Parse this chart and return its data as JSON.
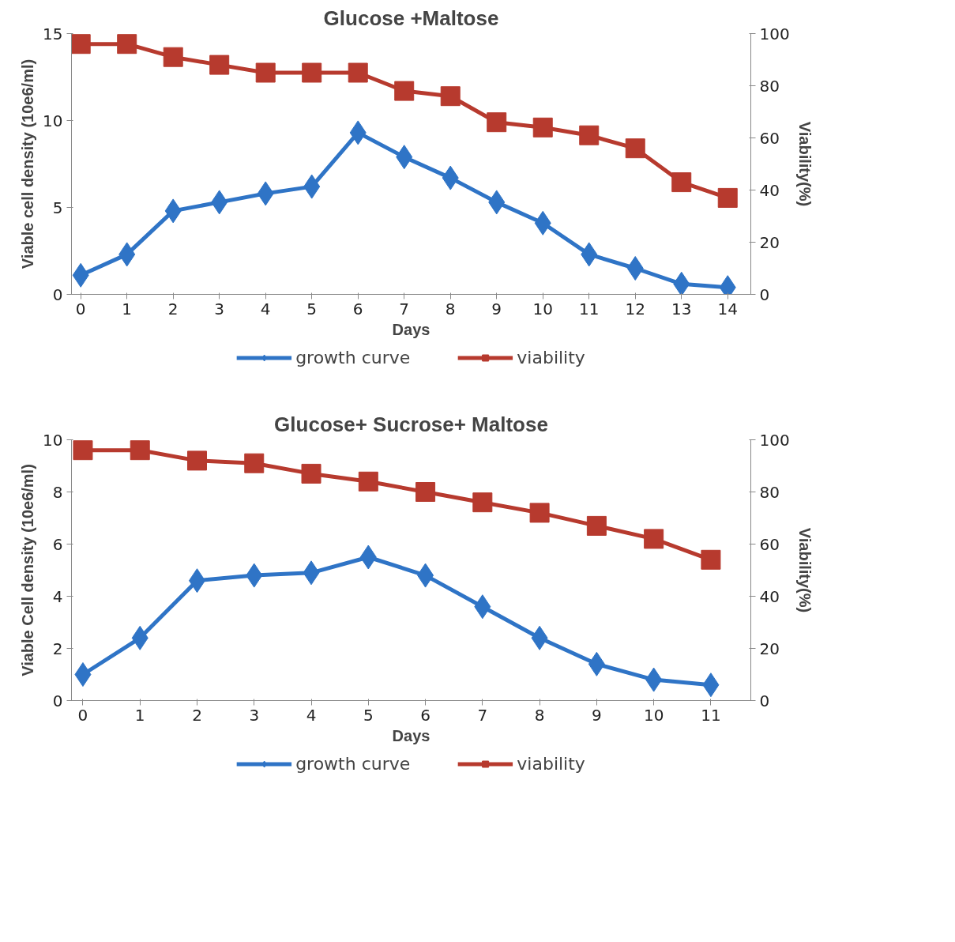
{
  "chart_data": [
    {
      "type": "line",
      "title": "Glucose +Maltose",
      "xlabel": "Days",
      "ylabel": "Viable cell density (10e6/ml)",
      "y2label": "Viability(%)",
      "x": [
        0,
        1,
        2,
        3,
        4,
        5,
        6,
        7,
        8,
        9,
        10,
        11,
        12,
        13,
        14
      ],
      "series": [
        {
          "name": "growth curve",
          "color": "#2f74c6",
          "marker": "diamond",
          "values": [
            1.1,
            2.3,
            4.8,
            5.3,
            5.8,
            6.2,
            9.3,
            7.9,
            6.7,
            5.3,
            4.1,
            2.3,
            1.5,
            0.6,
            0.4
          ]
        },
        {
          "name": "viability",
          "color": "#b73a2e",
          "marker": "square",
          "axis": "y2",
          "values": [
            96,
            96,
            91,
            88,
            85,
            85,
            85,
            78,
            76,
            66,
            64,
            61,
            56,
            43,
            37
          ]
        }
      ],
      "xlim": [
        -0.2,
        14.5
      ],
      "xticks": [
        0,
        1,
        2,
        3,
        4,
        5,
        6,
        7,
        8,
        9,
        10,
        11,
        12,
        13,
        14
      ],
      "ylim": [
        0,
        15
      ],
      "yticks": [
        0,
        5,
        10,
        15
      ],
      "y2lim": [
        0,
        100
      ],
      "y2ticks": [
        0,
        20,
        40,
        60,
        80,
        100
      ],
      "legend": "bottom"
    },
    {
      "type": "line",
      "title": "Glucose+ Sucrose+ Maltose",
      "xlabel": "Days",
      "ylabel": "Viable Cell density (10e6/ml)",
      "y2label": "Viability(%)",
      "x": [
        0,
        1,
        2,
        3,
        4,
        5,
        6,
        7,
        8,
        9,
        10,
        11
      ],
      "series": [
        {
          "name": "growth curve",
          "color": "#2f74c6",
          "marker": "diamond",
          "values": [
            1.0,
            2.4,
            4.6,
            4.8,
            4.9,
            5.5,
            4.8,
            3.6,
            2.4,
            1.4,
            0.8,
            0.6
          ]
        },
        {
          "name": "viability",
          "color": "#b73a2e",
          "marker": "square",
          "axis": "y2",
          "values": [
            96,
            96,
            92,
            91,
            87,
            84,
            80,
            76,
            72,
            67,
            62,
            54
          ]
        }
      ],
      "xlim": [
        -0.2,
        11.7
      ],
      "xticks": [
        0,
        1,
        2,
        3,
        4,
        5,
        6,
        7,
        8,
        9,
        10,
        11
      ],
      "ylim": [
        0,
        10
      ],
      "yticks": [
        0,
        2,
        4,
        6,
        8,
        10
      ],
      "y2lim": [
        0,
        100
      ],
      "y2ticks": [
        0,
        20,
        40,
        60,
        80,
        100
      ],
      "legend": "bottom"
    }
  ]
}
